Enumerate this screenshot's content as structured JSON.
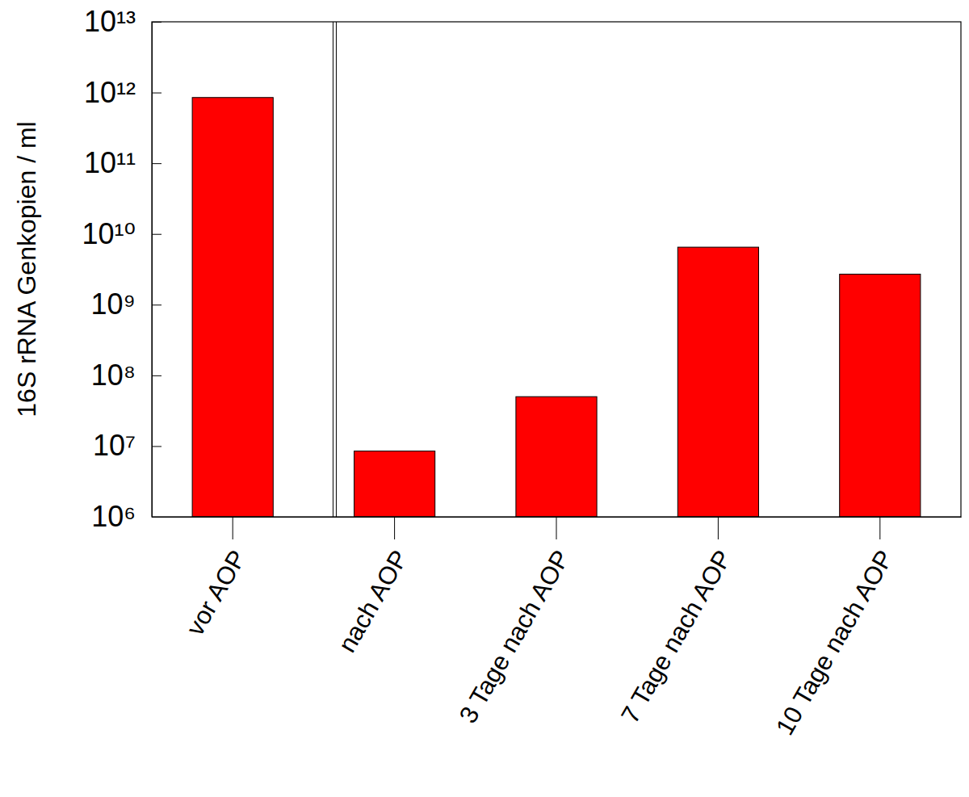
{
  "chart_data": {
    "type": "bar",
    "y_label": "16S rRNA Genkopien / ml",
    "categories": [
      "vor AOP",
      "nach AOP",
      "3 Tage nach AOP",
      "7 Tage nach AOP",
      "10 Tage nach AOP"
    ],
    "values": [
      850000000000,
      8500000,
      50000000,
      6500000000,
      2700000000
    ],
    "color": "#ff0000",
    "log": "y",
    "ylim": [
      1000000,
      10000000000000
    ],
    "yticks": [
      {
        "value": 1000000,
        "label": "10⁶"
      },
      {
        "value": 10000000,
        "label": "10⁷"
      },
      {
        "value": 100000000,
        "label": "10⁸"
      },
      {
        "value": 1000000000,
        "label": "10⁹"
      },
      {
        "value": 10000000000,
        "label": "10¹⁰"
      },
      {
        "value": 100000000000,
        "label": "10¹¹"
      },
      {
        "value": 1000000000000,
        "label": "10¹²"
      },
      {
        "value": 10000000000000,
        "label": "10¹³"
      }
    ],
    "grid": false
  }
}
